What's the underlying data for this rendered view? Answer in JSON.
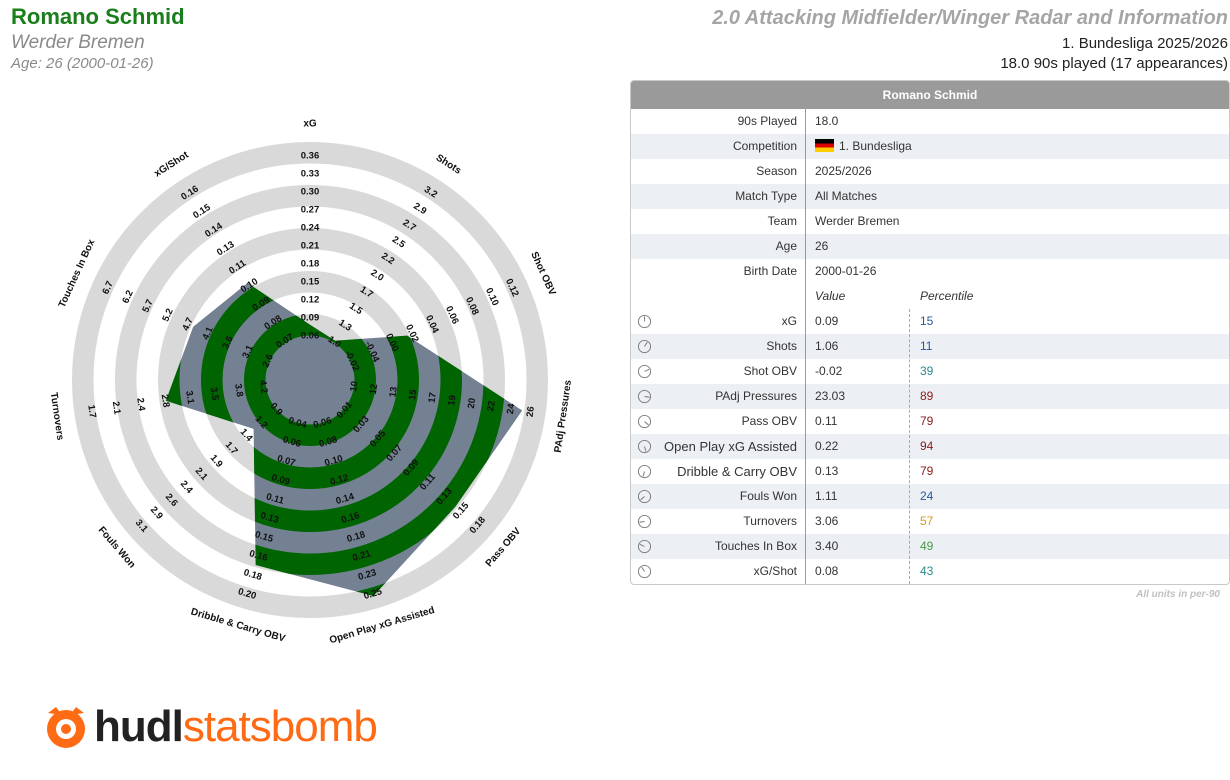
{
  "header": {
    "player_name": "Romano Schmid",
    "team": "Werder Bremen",
    "age_line": "Age: 26 (2000-01-26)",
    "radar_title": "2.0 Attacking Midfielder/Winger Radar and Information",
    "league_season": "1. Bundesliga 2025/2026",
    "played": "18.0 90s played (17 appearances)"
  },
  "colors": {
    "title_green": "#1a7e1a",
    "ring_gray": "#d9d9d9",
    "poly_fill": "#738192",
    "poly_green": "#006400",
    "pct_blue": "#2a5a9a",
    "pct_red": "#8b1a1a",
    "pct_teal": "#2a8a8a",
    "pct_orange": "#d69a1a",
    "pct_green": "#4a9a4a",
    "logo_orange": "#ff6a14"
  },
  "chart_data": {
    "type": "radar",
    "title": "2.0 Attacking Midfielder/Winger Radar and Information",
    "ring_count": 5,
    "metrics": [
      {
        "name": "xG",
        "value": 0.09,
        "ticks": [
          "0.09",
          "0.12",
          "0.15",
          "0.18",
          "0.21",
          "0.24",
          "0.27",
          "0.30",
          "0.33",
          "0.36"
        ],
        "inner_ticks": [
          "0.06"
        ]
      },
      {
        "name": "Shots",
        "value": 1.06,
        "ticks": [
          "1.3",
          "1.5",
          "1.7",
          "2.0",
          "2.2",
          "2.5",
          "2.7",
          "2.9",
          "3.2"
        ],
        "inner_ticks": [
          "1.0"
        ]
      },
      {
        "name": "Shot OBV",
        "value": -0.02,
        "ticks": [
          "0.00",
          "0.02",
          "0.04",
          "0.06",
          "0.08",
          "0.10",
          "0.12"
        ],
        "inner_ticks": [
          "-0.02",
          "-0.04"
        ]
      },
      {
        "name": "PAdj Pressures",
        "value": 23.03,
        "ticks": [
          "13",
          "15",
          "17",
          "19",
          "20",
          "22",
          "24",
          "26"
        ],
        "inner_ticks": [
          "10",
          "12"
        ]
      },
      {
        "name": "Pass OBV",
        "value": 0.11,
        "ticks": [
          "0.05",
          "0.07",
          "0.09",
          "0.11",
          "0.13",
          "0.15",
          "0.18"
        ],
        "inner_ticks": [
          "0.01",
          "0.03"
        ]
      },
      {
        "name": "Open Play xG Assisted",
        "value": 0.22,
        "ticks": [
          "0.10",
          "0.12",
          "0.14",
          "0.16",
          "0.18",
          "0.21",
          "0.23",
          "0.25"
        ],
        "inner_ticks": [
          "0.06",
          "0.08"
        ]
      },
      {
        "name": "Dribble & Carry OBV",
        "value": 0.13,
        "ticks": [
          "0.07",
          "0.09",
          "0.11",
          "0.13",
          "0.15",
          "0.16",
          "0.18",
          "0.20"
        ],
        "inner_ticks": [
          "0.04",
          "0.06"
        ]
      },
      {
        "name": "Fouls Won",
        "value": 1.11,
        "ticks": [
          "1.4",
          "1.7",
          "1.9",
          "2.1",
          "2.4",
          "2.6",
          "2.9",
          "3.1"
        ],
        "inner_ticks": [
          "0.9",
          "1.2"
        ]
      },
      {
        "name": "Turnovers",
        "value": 3.06,
        "ticks": [
          "3.1",
          "2.8",
          "2.4",
          "2.1",
          "1.7"
        ],
        "inner_ticks": [
          "4.2",
          "3.8",
          "3.5"
        ]
      },
      {
        "name": "Touches In Box",
        "value": 3.4,
        "ticks": [
          "3.6",
          "4.1",
          "4.7",
          "5.2",
          "5.7",
          "6.2",
          "6.7"
        ],
        "inner_ticks": [
          "2.6",
          "3.1"
        ]
      },
      {
        "name": "xG/Shot",
        "value": 0.08,
        "ticks": [
          "0.08",
          "0.09",
          "0.10",
          "0.11",
          "0.13",
          "0.14",
          "0.15",
          "0.16"
        ],
        "inner_ticks": [
          "0.07"
        ]
      }
    ]
  },
  "table": {
    "header": "Romano Schmid",
    "info_rows": [
      {
        "label": "90s Played",
        "value": "18.0"
      },
      {
        "label": "Competition",
        "value": "1. Bundesliga",
        "flag": true
      },
      {
        "label": "Season",
        "value": "2025/2026"
      },
      {
        "label": "Match Type",
        "value": "All Matches"
      },
      {
        "label": "Team",
        "value": "Werder Bremen"
      },
      {
        "label": "Age",
        "value": "26"
      },
      {
        "label": "Birth Date",
        "value": "2000-01-26"
      }
    ],
    "value_header": "Value",
    "percentile_header": "Percentile",
    "metric_rows": [
      {
        "label": "xG",
        "value": "0.09",
        "percentile": "15",
        "color": "#2a5a9a",
        "icon": "dial-icon"
      },
      {
        "label": "Shots",
        "value": "1.06",
        "percentile": "11",
        "color": "#2a5a9a",
        "icon": "dial-icon"
      },
      {
        "label": "Shot OBV",
        "value": "-0.02",
        "percentile": "39",
        "color": "#2a8a8a",
        "icon": "dial-icon"
      },
      {
        "label": "PAdj Pressures",
        "value": "23.03",
        "percentile": "89",
        "color": "#8b1a1a",
        "icon": "dial-icon"
      },
      {
        "label": "Pass OBV",
        "value": "0.11",
        "percentile": "79",
        "color": "#8b1a1a",
        "icon": "dial-icon"
      },
      {
        "label": "Open Play xG Assisted",
        "value": "0.22",
        "percentile": "94",
        "color": "#8b1a1a",
        "icon": "dial-icon"
      },
      {
        "label": "Dribble & Carry OBV",
        "value": "0.13",
        "percentile": "79",
        "color": "#8b1a1a",
        "icon": "dial-icon"
      },
      {
        "label": "Fouls Won",
        "value": "1.11",
        "percentile": "24",
        "color": "#2a5a9a",
        "icon": "dial-icon"
      },
      {
        "label": "Turnovers",
        "value": "3.06",
        "percentile": "57",
        "color": "#d69a1a",
        "icon": "dial-icon"
      },
      {
        "label": "Touches In Box",
        "value": "3.40",
        "percentile": "49",
        "color": "#4a9a4a",
        "icon": "dial-icon"
      },
      {
        "label": "xG/Shot",
        "value": "0.08",
        "percentile": "43",
        "color": "#2a8a8a",
        "icon": "dial-icon"
      }
    ],
    "footnote": "All units in per-90"
  },
  "logo": {
    "hudl": "hudl",
    "statsbomb": "statsbomb"
  }
}
